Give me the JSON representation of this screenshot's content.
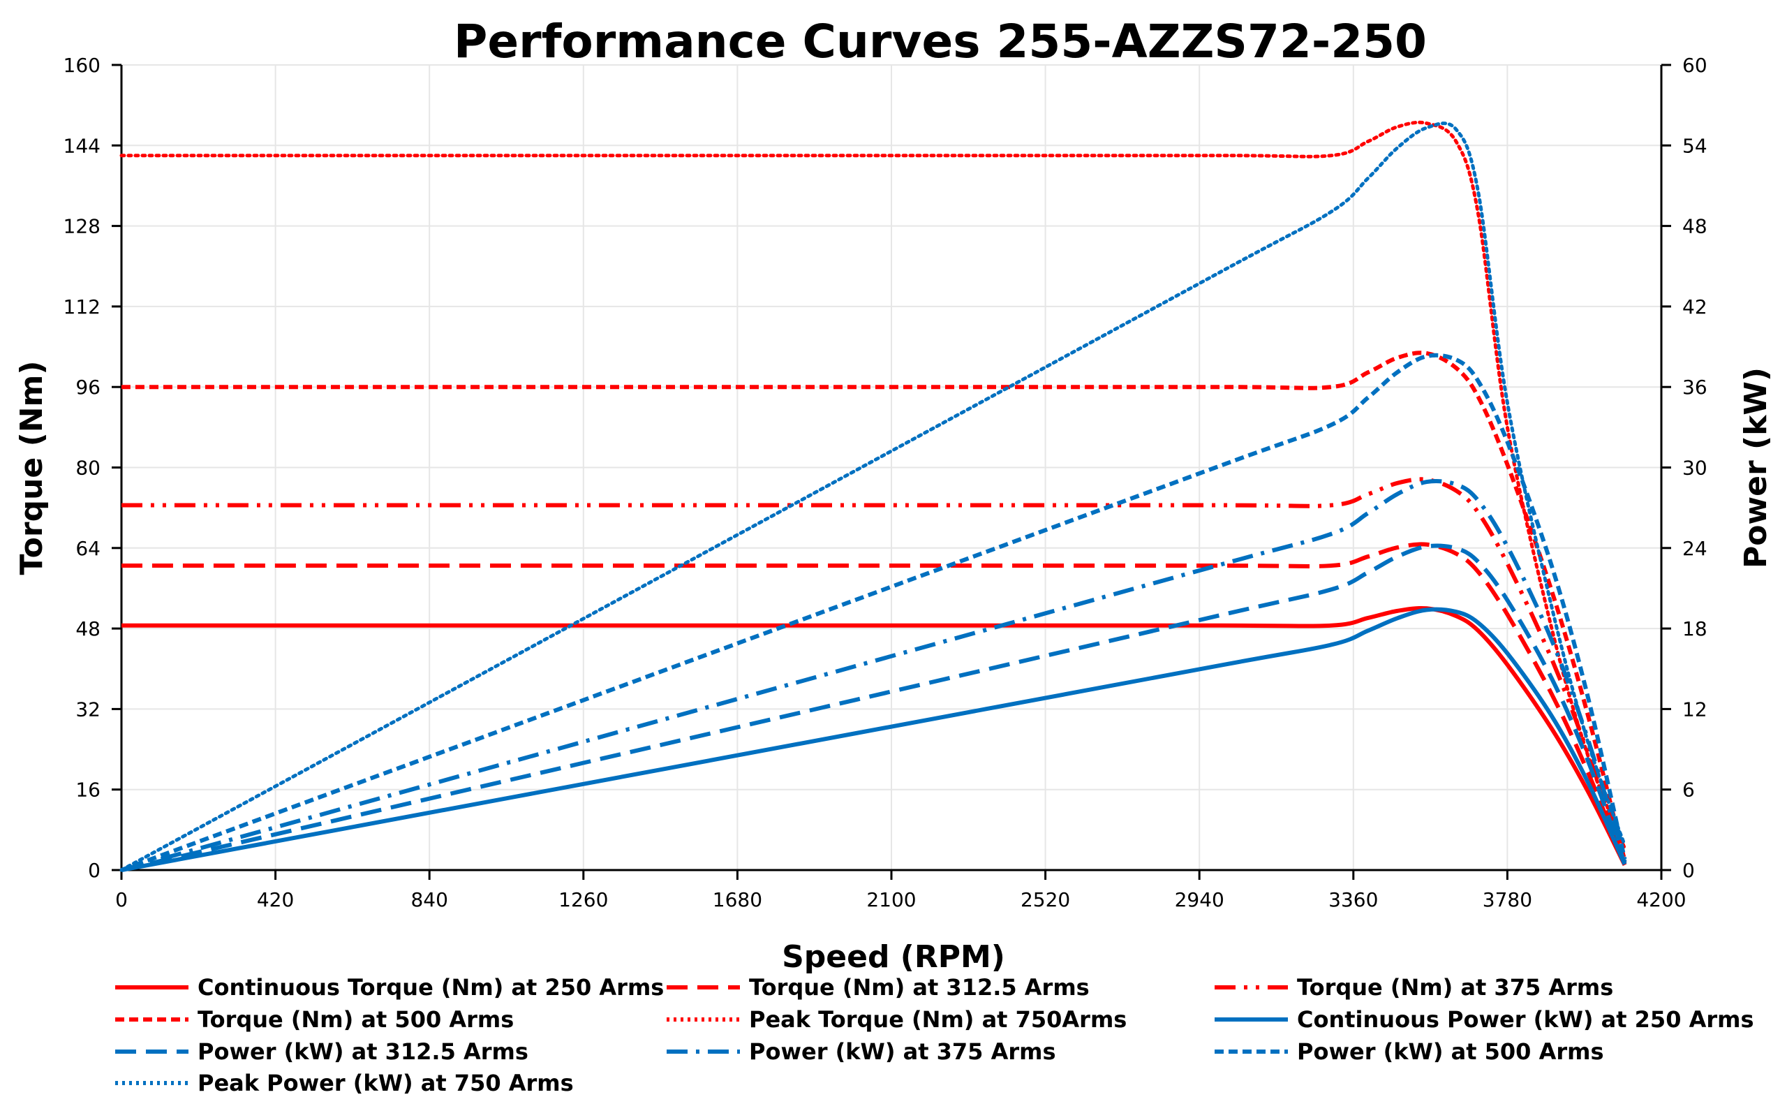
{
  "chart_data": {
    "type": "line",
    "title": "Performance Curves 255-AZZS72-250",
    "xlabel": "Speed (RPM)",
    "ylabel": "Torque (Nm)",
    "y2label": "Power (kW)",
    "xlim": [
      0,
      4200
    ],
    "ylim": [
      0,
      160
    ],
    "y2lim": [
      0,
      60
    ],
    "xticks": [
      0,
      420,
      840,
      1260,
      1680,
      2100,
      2520,
      2940,
      3360,
      3780,
      4200
    ],
    "yticks": [
      0,
      16,
      32,
      48,
      64,
      80,
      96,
      112,
      128,
      144,
      160
    ],
    "y2ticks": [
      0,
      6,
      12,
      18,
      24,
      30,
      36,
      42,
      48,
      54,
      60
    ],
    "grid": true,
    "legend_position": "bottom",
    "x": [
      0,
      1000,
      2000,
      3000,
      3300,
      3400,
      3480,
      3560,
      3640,
      3700,
      3780,
      3900,
      4000,
      4100
    ],
    "series": [
      {
        "name": "Continuous Torque (Nm) at 250 Arms",
        "axis": "left",
        "color": "#ff0000",
        "style": "solid",
        "values": [
          48.6,
          48.6,
          48.6,
          48.6,
          48.6,
          50.1,
          51.5,
          52.0,
          50.5,
          47.6,
          40.8,
          28.2,
          15.6,
          1.0
        ]
      },
      {
        "name": "Torque (Nm) at 312.5 Arms",
        "axis": "left",
        "color": "#ff0000",
        "style": "long-dash",
        "values": [
          60.5,
          60.5,
          60.5,
          60.5,
          60.5,
          62.3,
          64.1,
          64.7,
          62.9,
          59.3,
          50.8,
          35.1,
          19.4,
          1.2
        ]
      },
      {
        "name": "Torque (Nm) at 375 Arms",
        "axis": "left",
        "color": "#ff0000",
        "style": "dash-dot-dot",
        "values": [
          72.5,
          72.5,
          72.5,
          72.5,
          72.5,
          74.7,
          76.9,
          77.6,
          75.4,
          71.1,
          60.9,
          42.1,
          23.2,
          1.5
        ]
      },
      {
        "name": "Torque (Nm) at 500 Arms",
        "axis": "left",
        "color": "#ff0000",
        "style": "short-dash",
        "values": [
          96,
          96,
          96,
          96,
          96,
          98.9,
          101.8,
          102.7,
          99.8,
          94.1,
          80.6,
          55.7,
          30.7,
          1.9
        ]
      },
      {
        "name": "Peak Torque (Nm) at 750Arms",
        "axis": "left",
        "color": "#ff0000",
        "style": "dotted",
        "values": [
          142,
          142,
          142,
          142,
          142,
          144.8,
          147.7,
          148.4,
          144.8,
          130.6,
          88.0,
          48.3,
          22.7,
          4.3
        ]
      },
      {
        "name": "Continuous Power (kW) at 250 Arms",
        "axis": "right",
        "color": "#0070c0",
        "style": "solid",
        "values": [
          0,
          5.09,
          10.18,
          15.27,
          16.79,
          17.84,
          18.77,
          19.39,
          19.25,
          18.44,
          16.15,
          11.52,
          6.53,
          0.43
        ]
      },
      {
        "name": "Power (kW) at 312.5 Arms",
        "axis": "right",
        "color": "#0070c0",
        "style": "long-dash",
        "values": [
          0,
          6.34,
          12.67,
          19.01,
          20.91,
          22.18,
          23.36,
          24.12,
          23.98,
          22.98,
          20.11,
          14.33,
          8.13,
          0.52
        ]
      },
      {
        "name": "Power (kW) at 375 Arms",
        "axis": "right",
        "color": "#0070c0",
        "style": "dash-dot",
        "values": [
          0,
          7.59,
          15.18,
          22.78,
          25.05,
          26.6,
          28.02,
          28.93,
          28.74,
          27.55,
          24.11,
          17.19,
          9.72,
          0.64
        ]
      },
      {
        "name": "Power (kW) at 500 Arms",
        "axis": "right",
        "color": "#0070c0",
        "style": "short-dash",
        "values": [
          0,
          10.05,
          20.11,
          30.16,
          33.18,
          35.21,
          37.1,
          38.29,
          38.04,
          36.46,
          31.91,
          22.75,
          12.86,
          0.81
        ]
      },
      {
        "name": "Peak Power (kW) at 750 Arms",
        "axis": "right",
        "color": "#0070c0",
        "style": "dotted",
        "values": [
          0,
          14.87,
          29.74,
          44.61,
          49.07,
          51.56,
          53.82,
          55.32,
          55.2,
          50.61,
          34.83,
          19.72,
          9.51,
          1.85
        ]
      }
    ]
  }
}
